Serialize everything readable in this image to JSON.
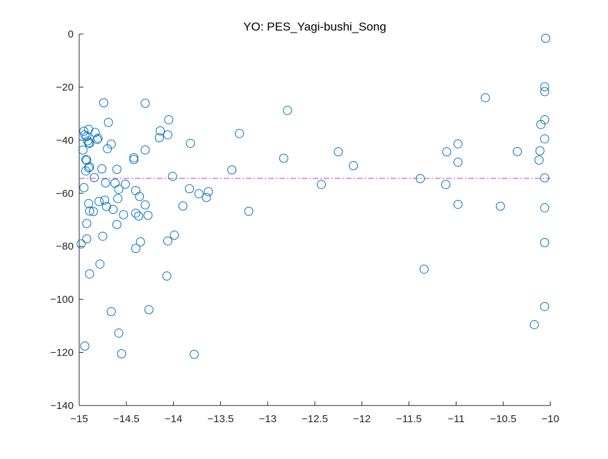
{
  "chart_data": {
    "type": "scatter",
    "title": "YO: PES_Yagi-bushi_Song",
    "xlabel": "",
    "ylabel": "",
    "xlim": [
      -15,
      -10
    ],
    "ylim": [
      -140,
      0
    ],
    "xticks": [
      "−15",
      "−14.5",
      "−14",
      "−13.5",
      "−13",
      "−12.5",
      "−12",
      "−11.5",
      "−11",
      "−10.5",
      "−10"
    ],
    "xtick_values": [
      -15,
      -14.5,
      -14,
      -13.5,
      -13,
      -12.5,
      -12,
      -11.5,
      -11,
      -10.5,
      -10
    ],
    "yticks": [
      "0",
      "−20",
      "−40",
      "−60",
      "−80",
      "−100",
      "−120",
      "−140"
    ],
    "ytick_values": [
      0,
      -20,
      -40,
      -60,
      -80,
      -100,
      -120,
      -140
    ],
    "grid": false,
    "reference_line": {
      "y": -54.4,
      "color": "#cc33cc",
      "style": "dash-dot"
    },
    "marker_color": "#0072bd",
    "series": [
      {
        "points": [
          [
            -14.98,
            -79.1
          ],
          [
            -14.96,
            -43.7
          ],
          [
            -14.95,
            -36.6
          ],
          [
            -14.95,
            -57.9
          ],
          [
            -14.94,
            -117.6
          ],
          [
            -14.94,
            -38.0
          ],
          [
            -14.93,
            -47.3
          ],
          [
            -14.93,
            -51.6
          ],
          [
            -14.92,
            -38.6
          ],
          [
            -14.92,
            -71.4
          ],
          [
            -14.92,
            -77.2
          ],
          [
            -14.92,
            -47.6
          ],
          [
            -14.91,
            -40.3
          ],
          [
            -14.9,
            -41.0
          ],
          [
            -14.9,
            -50.4
          ],
          [
            -14.9,
            -35.9
          ],
          [
            -14.9,
            -63.9
          ],
          [
            -14.89,
            -66.7
          ],
          [
            -14.89,
            -90.4
          ],
          [
            -14.89,
            -41.2
          ],
          [
            -14.89,
            -50.0
          ],
          [
            -14.85,
            -66.9
          ],
          [
            -14.84,
            -54.1
          ],
          [
            -14.83,
            -37.1
          ],
          [
            -14.81,
            -39.7
          ],
          [
            -14.8,
            -39.3
          ],
          [
            -14.79,
            -63.1
          ],
          [
            -14.78,
            -86.7
          ],
          [
            -14.76,
            -50.8
          ],
          [
            -14.75,
            -76.2
          ],
          [
            -14.74,
            -25.9
          ],
          [
            -14.73,
            -62.6
          ],
          [
            -14.72,
            -56.1
          ],
          [
            -14.71,
            -65.0
          ],
          [
            -14.7,
            -43.2
          ],
          [
            -14.69,
            -33.3
          ],
          [
            -14.66,
            -104.6
          ],
          [
            -14.66,
            -41.5
          ],
          [
            -14.64,
            -66.1
          ],
          [
            -14.62,
            -56.2
          ],
          [
            -14.6,
            -71.8
          ],
          [
            -14.6,
            -51.0
          ],
          [
            -14.59,
            -62.0
          ],
          [
            -14.58,
            -58.5
          ],
          [
            -14.58,
            -112.7
          ],
          [
            -14.55,
            -120.5
          ],
          [
            -14.53,
            -68.1
          ],
          [
            -14.51,
            -56.6
          ],
          [
            -14.42,
            -47.3
          ],
          [
            -14.42,
            -46.6
          ],
          [
            -14.4,
            -59.0
          ],
          [
            -14.4,
            -67.5
          ],
          [
            -14.4,
            -80.8
          ],
          [
            -14.37,
            -68.6
          ],
          [
            -14.36,
            -61.2
          ],
          [
            -14.35,
            -78.3
          ],
          [
            -14.3,
            -26.1
          ],
          [
            -14.3,
            -43.7
          ],
          [
            -14.3,
            -64.4
          ],
          [
            -14.27,
            -68.3
          ],
          [
            -14.26,
            -103.9
          ],
          [
            -14.15,
            -39.1
          ],
          [
            -14.14,
            -36.5
          ],
          [
            -14.07,
            -91.2
          ],
          [
            -14.06,
            -78.0
          ],
          [
            -14.06,
            -38.0
          ],
          [
            -14.05,
            -32.3
          ],
          [
            -14.01,
            -53.6
          ],
          [
            -13.99,
            -75.8
          ],
          [
            -13.9,
            -64.8
          ],
          [
            -13.83,
            -58.3
          ],
          [
            -13.82,
            -41.2
          ],
          [
            -13.78,
            -120.7
          ],
          [
            -13.73,
            -60.2
          ],
          [
            -13.65,
            -61.6
          ],
          [
            -13.63,
            -59.4
          ],
          [
            -13.38,
            -51.2
          ],
          [
            -13.3,
            -37.5
          ],
          [
            -13.2,
            -66.8
          ],
          [
            -12.83,
            -46.8
          ],
          [
            -12.79,
            -28.8
          ],
          [
            -12.43,
            -56.7
          ],
          [
            -12.25,
            -44.4
          ],
          [
            -12.09,
            -49.6
          ],
          [
            -11.38,
            -54.5
          ],
          [
            -11.34,
            -88.6
          ],
          [
            -11.11,
            -56.7
          ],
          [
            -11.1,
            -44.4
          ],
          [
            -10.98,
            -64.2
          ],
          [
            -10.98,
            -41.4
          ],
          [
            -10.98,
            -48.3
          ],
          [
            -10.69,
            -24.0
          ],
          [
            -10.53,
            -64.9
          ],
          [
            -10.35,
            -44.3
          ],
          [
            -10.17,
            -109.5
          ],
          [
            -10.12,
            -47.5
          ],
          [
            -10.11,
            -44.0
          ],
          [
            -10.1,
            -34.1
          ],
          [
            -10.06,
            -21.7
          ],
          [
            -10.06,
            -19.9
          ],
          [
            -10.06,
            -65.5
          ],
          [
            -10.06,
            -78.6
          ],
          [
            -10.06,
            -102.7
          ],
          [
            -10.06,
            -32.3
          ],
          [
            -10.06,
            -54.2
          ],
          [
            -10.06,
            -39.5
          ],
          [
            -10.05,
            -1.6
          ]
        ]
      }
    ]
  }
}
